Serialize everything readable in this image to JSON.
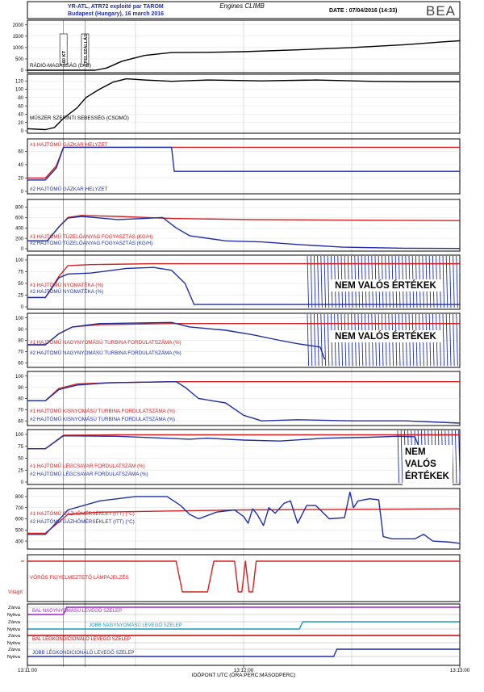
{
  "header": {
    "line1": "YR-ATL, ATR72 exploité par TAROM",
    "line2": "Budapest (Hungary), 16 march 2016",
    "center_title": "Engines CLIMB",
    "date_text": "DATE : 07/04/2016 (14:33)",
    "logo": "BEA"
  },
  "annotations": {
    "marker_60kt": "60 KT",
    "marker_felszallas": "FELSZÁLLÁS"
  },
  "xaxis": {
    "label": "IDŐPONT UTC (ÓRA:PERC:MÁSODPERC)",
    "ticks": [
      "13:11:00",
      "13:12:00",
      "13:13:00"
    ]
  },
  "colors": {
    "black": "#000000",
    "red": "#d42020",
    "blue": "#1f2fa3",
    "purple": "#a020c8",
    "cyan": "#1a9ab8",
    "darkred": "#c00000"
  },
  "chart_data": [
    {
      "type": "line",
      "label": "RÁDIÓ-MAGASSÁG (LÁB)",
      "yticks": [
        "2000",
        "1500",
        "1000",
        "500",
        "0"
      ],
      "ylim": [
        0,
        2100
      ],
      "series": [
        {
          "color": "black",
          "points": [
            [
              0,
              0
            ],
            [
              75,
              0
            ],
            [
              88,
              100
            ],
            [
              105,
              400
            ],
            [
              130,
              650
            ],
            [
              160,
              780
            ],
            [
              200,
              790
            ],
            [
              240,
              820
            ],
            [
              300,
              900
            ],
            [
              360,
              1000
            ],
            [
              420,
              1130
            ],
            [
              460,
              1250
            ],
            [
              480,
              1300
            ]
          ]
        }
      ]
    },
    {
      "type": "line",
      "label": "MŰSZER SZERINTI SEBESSÉG (CSOMÓ)",
      "yticks": [
        "120",
        "100",
        "80",
        "60",
        "40",
        "20",
        "0"
      ],
      "ylim": [
        0,
        130
      ],
      "series": [
        {
          "color": "black",
          "points": [
            [
              0,
              5
            ],
            [
              20,
              3
            ],
            [
              30,
              8
            ],
            [
              40,
              30
            ],
            [
              55,
              55
            ],
            [
              65,
              80
            ],
            [
              80,
              100
            ],
            [
              95,
              117
            ],
            [
              110,
              125
            ],
            [
              130,
              122
            ],
            [
              160,
              119
            ],
            [
              200,
              122
            ],
            [
              260,
              120
            ],
            [
              320,
              122
            ],
            [
              380,
              119
            ],
            [
              430,
              118
            ],
            [
              480,
              118
            ]
          ]
        }
      ]
    },
    {
      "type": "line",
      "label": "#1 HAJTÓMŰ GÁZKAR HELYZET",
      "label2": "#2 HAJTÓMŰ GÁZKAR HELYZET",
      "yticks": [
        "60",
        "40",
        "20",
        "0"
      ],
      "ylim": [
        0,
        75
      ],
      "series": [
        {
          "color": "red",
          "points": [
            [
              0,
              20
            ],
            [
              20,
              20
            ],
            [
              32,
              38
            ],
            [
              40,
              66
            ],
            [
              160,
              66
            ],
            [
              480,
              66
            ]
          ]
        },
        {
          "color": "blue",
          "points": [
            [
              0,
              17
            ],
            [
              20,
              17
            ],
            [
              32,
              35
            ],
            [
              40,
              66
            ],
            [
              160,
              66
            ],
            [
              163,
              30
            ],
            [
              480,
              30
            ]
          ]
        }
      ]
    },
    {
      "type": "line",
      "label": "#1 HAJTÓMŰ TÜZELŐANYAG FOGYASZTÁS (KG/H)",
      "label2": "#2 HAJTÓMŰ TÜZELŐANYAG FOGYASZTÁS (KG/H)",
      "yticks": [
        "800",
        "600",
        "400",
        "200",
        "0"
      ],
      "ylim": [
        0,
        900
      ],
      "series": [
        {
          "color": "red",
          "points": [
            [
              0,
              150
            ],
            [
              22,
              150
            ],
            [
              35,
              420
            ],
            [
              45,
              600
            ],
            [
              60,
              640
            ],
            [
              100,
              620
            ],
            [
              160,
              580
            ],
            [
              250,
              560
            ],
            [
              350,
              550
            ],
            [
              480,
              540
            ]
          ]
        },
        {
          "color": "blue",
          "points": [
            [
              0,
              150
            ],
            [
              22,
              150
            ],
            [
              35,
              420
            ],
            [
              45,
              590
            ],
            [
              60,
              620
            ],
            [
              100,
              560
            ],
            [
              130,
              580
            ],
            [
              150,
              600
            ],
            [
              165,
              400
            ],
            [
              180,
              250
            ],
            [
              220,
              150
            ],
            [
              260,
              130
            ],
            [
              300,
              80
            ],
            [
              350,
              30
            ],
            [
              420,
              10
            ],
            [
              480,
              5
            ]
          ]
        }
      ]
    },
    {
      "type": "line",
      "label": "#1 HAJTÓMŰ NYOMATÉKA (%)",
      "label2": "#2 HAJTÓMŰ NYOMATÉKA (%)",
      "yticks": [
        "100",
        "75",
        "50",
        "25",
        "0"
      ],
      "ylim": [
        0,
        105
      ],
      "invalid_text": "NEM VALÓS ÉRTÉKEK",
      "series": [
        {
          "color": "red",
          "points": [
            [
              0,
              20
            ],
            [
              20,
              20
            ],
            [
              35,
              65
            ],
            [
              45,
              88
            ],
            [
              70,
              90
            ],
            [
              140,
              92
            ],
            [
              480,
              92
            ]
          ]
        },
        {
          "color": "blue",
          "points": [
            [
              0,
              20
            ],
            [
              20,
              20
            ],
            [
              35,
              62
            ],
            [
              45,
              70
            ],
            [
              70,
              72
            ],
            [
              110,
              82
            ],
            [
              140,
              84
            ],
            [
              160,
              78
            ],
            [
              175,
              50
            ],
            [
              185,
              5
            ],
            [
              280,
              5
            ],
            [
              480,
              5
            ]
          ]
        }
      ]
    },
    {
      "type": "line",
      "label": "#1 HAJTÓMŰ NAGYNYOMÁSÚ TURBINA FORDULATSZÁMA (%)",
      "label2": "#2 HAJTÓMŰ NAGYNYOMÁSÚ TURBINA FORDULATSZÁMA (%)",
      "yticks": [
        "100",
        "90",
        "80",
        "70",
        "60"
      ],
      "ylim": [
        58,
        102
      ],
      "invalid_text": "NEM VALÓS ÉRTÉKEK",
      "series": [
        {
          "color": "red",
          "points": [
            [
              0,
              76
            ],
            [
              20,
              76
            ],
            [
              35,
              86
            ],
            [
              50,
              92
            ],
            [
              80,
              94
            ],
            [
              160,
              95
            ],
            [
              480,
              95
            ]
          ]
        },
        {
          "color": "blue",
          "points": [
            [
              0,
              76
            ],
            [
              20,
              76
            ],
            [
              35,
              86
            ],
            [
              50,
              92
            ],
            [
              80,
              95
            ],
            [
              160,
              96
            ],
            [
              180,
              92
            ],
            [
              220,
              89
            ],
            [
              250,
              85
            ],
            [
              280,
              80
            ],
            [
              300,
              77
            ],
            [
              325,
              74
            ],
            [
              330,
              63
            ]
          ]
        }
      ]
    },
    {
      "type": "line",
      "label": "#1 HAJTÓMŰ KISNYOMÁSÚ TURBINA FORDULATSZÁMA (%)",
      "label2": "#2 HAJTÓMŰ KISNYOMÁSÚ TURBINA FORDULATSZÁMA (%)",
      "yticks": [
        "100",
        "90",
        "80",
        "70",
        "60"
      ],
      "ylim": [
        58,
        102
      ],
      "series": [
        {
          "color": "red",
          "points": [
            [
              0,
              78
            ],
            [
              20,
              78
            ],
            [
              35,
              89
            ],
            [
              55,
              93
            ],
            [
              90,
              94
            ],
            [
              160,
              95
            ],
            [
              480,
              95
            ]
          ]
        },
        {
          "color": "blue",
          "points": [
            [
              0,
              78
            ],
            [
              20,
              78
            ],
            [
              35,
              88
            ],
            [
              55,
              92
            ],
            [
              90,
              94
            ],
            [
              165,
              95
            ],
            [
              175,
              90
            ],
            [
              190,
              80
            ],
            [
              220,
              76
            ],
            [
              240,
              65
            ],
            [
              260,
              60
            ],
            [
              300,
              61
            ],
            [
              360,
              60
            ],
            [
              420,
              60
            ],
            [
              480,
              58
            ]
          ]
        }
      ]
    },
    {
      "type": "line",
      "label": "#1 HAJTÓMŰ LÉGCSAVAR FORDULATSZÁM (%)",
      "label2": "#2 HAJTÓMŰ LÉGCSAVAR FORDULATSZÁMA (%)",
      "yticks": [
        "100",
        "75",
        "50",
        "25",
        "0"
      ],
      "ylim": [
        0,
        105
      ],
      "invalid_text": "NEM VALÓS ÉRTÉKEK",
      "series": [
        {
          "color": "red",
          "points": [
            [
              0,
              70
            ],
            [
              20,
              70
            ],
            [
              40,
              98
            ],
            [
              100,
              99
            ],
            [
              480,
              99
            ]
          ]
        },
        {
          "color": "blue",
          "points": [
            [
              0,
              70
            ],
            [
              20,
              70
            ],
            [
              40,
              97
            ],
            [
              100,
              96
            ],
            [
              180,
              90
            ],
            [
              200,
              92
            ],
            [
              240,
              88
            ],
            [
              280,
              86
            ],
            [
              330,
              92
            ],
            [
              380,
              94
            ],
            [
              410,
              96
            ],
            [
              430,
              95
            ],
            [
              440,
              50
            ],
            [
              450,
              0
            ]
          ]
        }
      ]
    },
    {
      "type": "line",
      "label": "#1 HAJTÓMŰ GÁZHŐMÉRSÉKLET (ITT) (°C)",
      "label2": "#2 HAJTÓMŰ GÁZHŐMÉRSÉKLET (ITT) (°C)",
      "yticks": [
        "800",
        "700",
        "600",
        "500",
        "400"
      ],
      "ylim": [
        350,
        850
      ],
      "series": [
        {
          "color": "red",
          "points": [
            [
              0,
              470
            ],
            [
              20,
              470
            ],
            [
              45,
              640
            ],
            [
              80,
              660
            ],
            [
              160,
              670
            ],
            [
              240,
              680
            ],
            [
              480,
              690
            ]
          ]
        },
        {
          "color": "blue",
          "points": [
            [
              0,
              460
            ],
            [
              20,
              460
            ],
            [
              45,
              680
            ],
            [
              80,
              760
            ],
            [
              120,
              800
            ],
            [
              155,
              800
            ],
            [
              170,
              720
            ],
            [
              180,
              640
            ],
            [
              190,
              600
            ],
            [
              210,
              660
            ],
            [
              230,
              680
            ],
            [
              240,
              620
            ],
            [
              245,
              560
            ],
            [
              250,
              690
            ],
            [
              255,
              640
            ],
            [
              262,
              540
            ],
            [
              268,
              700
            ],
            [
              275,
              650
            ],
            [
              285,
              740
            ],
            [
              292,
              760
            ],
            [
              300,
              560
            ],
            [
              310,
              720
            ],
            [
              320,
              720
            ],
            [
              335,
              600
            ],
            [
              352,
              610
            ],
            [
              358,
              840
            ],
            [
              362,
              700
            ],
            [
              367,
              760
            ],
            [
              380,
              780
            ],
            [
              390,
              770
            ],
            [
              395,
              440
            ],
            [
              405,
              420
            ],
            [
              430,
              420
            ],
            [
              440,
              460
            ],
            [
              450,
              400
            ],
            [
              470,
              390
            ],
            [
              480,
              380
            ]
          ]
        }
      ]
    },
    {
      "type": "line",
      "label": "VÖRÖS FIGYELMEZTETŐ LÁMPAJELZÉS",
      "ylabel": "Világít",
      "series": [
        {
          "color": "red",
          "points": [
            [
              0,
              1
            ],
            [
              165,
              1
            ],
            [
              172,
              0
            ],
            [
              200,
              0
            ],
            [
              207,
              1
            ],
            [
              230,
              1
            ],
            [
              234,
              0
            ],
            [
              238,
              0
            ],
            [
              242,
              1
            ],
            [
              246,
              0
            ],
            [
              250,
              0
            ],
            [
              254,
              1
            ],
            [
              480,
              1
            ]
          ]
        }
      ]
    }
  ],
  "digital": {
    "state_labels": [
      "Zárva",
      "Nyitva"
    ],
    "tracks": [
      {
        "label": "BAL NAGYNYOMÁSÚ LEVEGŐ SZELEP",
        "color": "purple",
        "high_from": 40
      },
      {
        "label": "JOBB NAGYNYOMÁSÚ LEVEGŐ SZELEP",
        "color": "cyan",
        "high_from": 302
      },
      {
        "label": "BAL LÉGKONDICIONÁLÓ LEVEGŐ SZELEP",
        "color": "darkred",
        "high_from": 0
      },
      {
        "label": "JOBB LÉGKONDICIONÁLÓ LEVEGŐ SZELEP",
        "color": "blue",
        "high_from": 340
      }
    ]
  }
}
